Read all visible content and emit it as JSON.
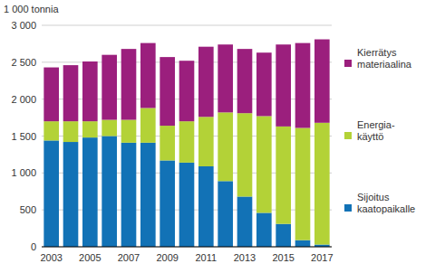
{
  "chart_data": {
    "type": "bar",
    "stacked": true,
    "y_label": "1 000 tonnia",
    "categories": [
      "2003",
      null,
      "2005",
      null,
      "2007",
      null,
      "2009",
      null,
      "2011",
      null,
      "2013",
      null,
      "2015",
      null,
      "2017"
    ],
    "series": [
      {
        "name": "Sijoitus kaatopaikalle",
        "color": "#1272b6",
        "values": [
          1440,
          1420,
          1480,
          1500,
          1410,
          1410,
          1170,
          1140,
          1090,
          890,
          680,
          460,
          310,
          90,
          30
        ]
      },
      {
        "name": "Energia-käyttö",
        "color": "#b3d237",
        "values": [
          260,
          280,
          220,
          220,
          310,
          470,
          470,
          560,
          670,
          930,
          1130,
          1310,
          1320,
          1520,
          1650
        ]
      },
      {
        "name": "Kierrätys materiaalina",
        "color": "#9b1f7d",
        "values": [
          730,
          760,
          810,
          880,
          960,
          880,
          930,
          820,
          950,
          920,
          870,
          860,
          1110,
          1150,
          1130
        ]
      }
    ],
    "ylim": [
      0,
      3000
    ],
    "yticks": [
      0,
      500,
      {
        "value": 1000,
        "label": "1 000"
      },
      {
        "value": 1500,
        "label": "1 500"
      },
      {
        "value": 2000,
        "label": "2 000"
      },
      {
        "value": 2500,
        "label": "2 500"
      },
      {
        "value": 3000,
        "label": "3 000"
      }
    ],
    "grid": true,
    "legend": "right"
  }
}
